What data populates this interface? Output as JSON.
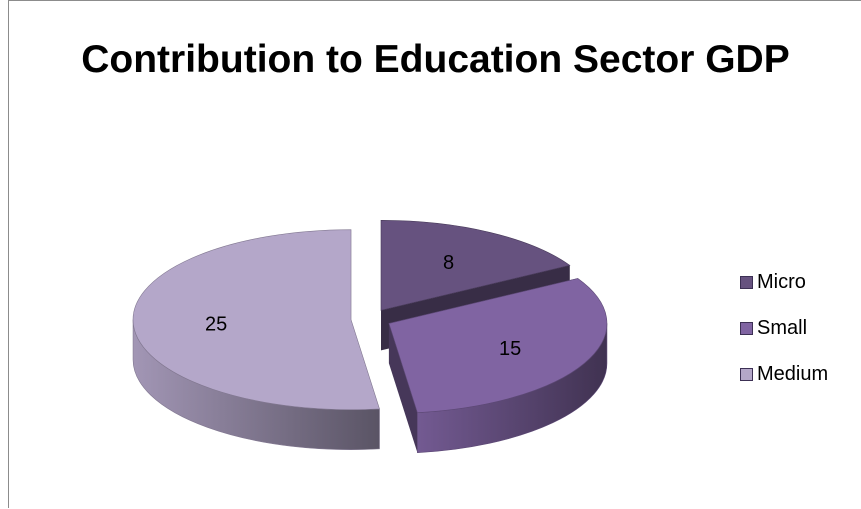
{
  "chart_data": {
    "type": "pie",
    "title": "Contribution to Education Sector GDP",
    "categories": [
      "Micro",
      "Small",
      "Medium"
    ],
    "values": [
      8,
      15,
      25
    ],
    "colors": [
      "#66527f",
      "#8064a2",
      "#b4a7c9"
    ],
    "legend_position": "right",
    "three_d": true,
    "exploded": true
  }
}
